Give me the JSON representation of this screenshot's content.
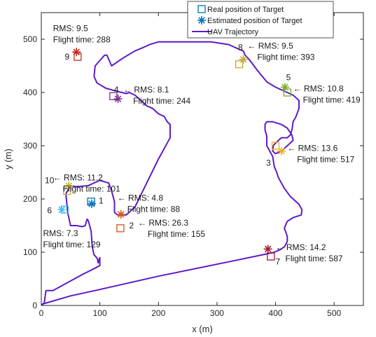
{
  "chart_data": {
    "type": "scatter",
    "title": "",
    "xlabel": "x (m)",
    "ylabel": "y (m)",
    "xlim": [
      0,
      550
    ],
    "ylim": [
      0,
      550
    ],
    "xticks": [
      0,
      100,
      200,
      300,
      400,
      500
    ],
    "yticks": [
      0,
      100,
      200,
      300,
      400,
      500
    ],
    "grid": false,
    "legend_position": "top-right",
    "legend": [
      {
        "label": "Real position of Target",
        "marker": "square",
        "color": "#0072BD"
      },
      {
        "label": "Estimated position of Target",
        "marker": "asterisk",
        "color": "#0072BD"
      },
      {
        "label": "UAV Trajectory",
        "marker": "line",
        "color": "#5E1BC9"
      }
    ],
    "colors": {
      "trajectory": "#5E1BC9",
      "target_1": "#0072BD",
      "target_2": "#D95319",
      "target_3": "#EDB120",
      "target_4": "#7E2F8E",
      "target_5": "#77AC30",
      "target_6": "#4DBEEE",
      "target_7": "#A2142F",
      "target_8": "#C8A830",
      "target_9": "#C8281A",
      "target_10": "#C8B830"
    },
    "targets": [
      {
        "id": "1",
        "real": [
          85,
          195
        ],
        "estimated": [
          86,
          191
        ],
        "color": "#0072BD",
        "rms": "RMS: 4.8",
        "flight_time": "Flight time: 88"
      },
      {
        "id": "2",
        "real": [
          135,
          145
        ],
        "estimated": [
          136,
          171
        ],
        "color": "#D95319",
        "rms": "RMS: 26.3",
        "flight_time": "Flight time: 155"
      },
      {
        "id": "3",
        "real": [
          400,
          300
        ],
        "estimated": [
          410,
          290
        ],
        "color": "#EDB120",
        "rms": "RMS: 13.6",
        "flight_time": "Flight time: 517"
      },
      {
        "id": "4",
        "real": [
          123,
          393
        ],
        "estimated": [
          131,
          388
        ],
        "color": "#7E2F8E",
        "rms": "RMS: 8.1",
        "flight_time": "Flight time: 244"
      },
      {
        "id": "5",
        "real": [
          420,
          400
        ],
        "estimated": [
          416,
          410
        ],
        "color": "#77AC30",
        "rms": "RMS: 10.8",
        "flight_time": "Flight time: 419"
      },
      {
        "id": "6",
        "real": [
          40,
          180
        ],
        "estimated": [
          35,
          180
        ],
        "color": "#4DBEEE",
        "rms": "RMS: 7.3",
        "flight_time": "Flight time: 129"
      },
      {
        "id": "7",
        "real": [
          392,
          92
        ],
        "estimated": [
          387,
          106
        ],
        "color": "#A2142F",
        "rms": "RMS: 14.2",
        "flight_time": "Flight time: 587"
      },
      {
        "id": "8",
        "real": [
          338,
          453
        ],
        "estimated": [
          345,
          462
        ],
        "color": "#C8A830",
        "rms": "RMS: 9.5",
        "flight_time": "Flight time: 393"
      },
      {
        "id": "9",
        "real": [
          62,
          467
        ],
        "estimated": [
          60,
          476
        ],
        "color": "#C8281A",
        "rms": "RMS: 9.5",
        "flight_time": "Flight time: 288"
      },
      {
        "id": "10",
        "real": [
          44,
          215
        ],
        "estimated": [
          47,
          225
        ],
        "color": "#C8B830",
        "rms": "RMS: 11.2",
        "flight_time": "Flight time: 101"
      }
    ],
    "trajectory": [
      [
        0,
        0
      ],
      [
        5,
        5
      ],
      [
        8,
        28
      ],
      [
        20,
        28
      ],
      [
        45,
        43
      ],
      [
        70,
        58
      ],
      [
        95,
        72
      ],
      [
        100,
        75
      ],
      [
        100,
        90
      ],
      [
        97,
        80
      ],
      [
        96,
        87
      ],
      [
        93,
        92
      ],
      [
        90,
        95
      ],
      [
        87,
        110
      ],
      [
        85,
        140
      ],
      [
        80,
        160
      ],
      [
        78,
        162
      ],
      [
        75,
        150
      ],
      [
        70,
        148
      ],
      [
        60,
        150
      ],
      [
        50,
        150
      ],
      [
        48,
        160
      ],
      [
        45,
        175
      ],
      [
        42,
        210
      ],
      [
        50,
        225
      ],
      [
        60,
        223
      ],
      [
        80,
        225
      ],
      [
        100,
        235
      ],
      [
        115,
        230
      ],
      [
        120,
        215
      ],
      [
        125,
        195
      ],
      [
        125,
        175
      ],
      [
        130,
        170
      ],
      [
        145,
        170
      ],
      [
        160,
        185
      ],
      [
        180,
        230
      ],
      [
        200,
        275
      ],
      [
        215,
        305
      ],
      [
        220,
        315
      ],
      [
        220,
        340
      ],
      [
        215,
        345
      ],
      [
        210,
        355
      ],
      [
        200,
        360
      ],
      [
        190,
        370
      ],
      [
        180,
        375
      ],
      [
        170,
        385
      ],
      [
        160,
        395
      ],
      [
        150,
        400
      ],
      [
        145,
        398
      ],
      [
        130,
        402
      ],
      [
        110,
        408
      ],
      [
        95,
        418
      ],
      [
        90,
        430
      ],
      [
        92,
        450
      ],
      [
        100,
        460
      ],
      [
        108,
        470
      ],
      [
        112,
        470
      ],
      [
        120,
        450
      ],
      [
        140,
        465
      ],
      [
        160,
        478
      ],
      [
        175,
        485
      ],
      [
        185,
        490
      ],
      [
        200,
        495
      ],
      [
        230,
        495
      ],
      [
        260,
        495
      ],
      [
        290,
        495
      ],
      [
        320,
        490
      ],
      [
        340,
        480
      ],
      [
        345,
        478
      ],
      [
        348,
        470
      ],
      [
        355,
        462
      ],
      [
        370,
        440
      ],
      [
        385,
        420
      ],
      [
        400,
        410
      ],
      [
        410,
        405
      ],
      [
        420,
        400
      ],
      [
        430,
        395
      ],
      [
        440,
        385
      ],
      [
        440,
        370
      ],
      [
        435,
        355
      ],
      [
        430,
        345
      ],
      [
        428,
        330
      ],
      [
        425,
        320
      ],
      [
        420,
        315
      ],
      [
        412,
        315
      ],
      [
        410,
        315
      ],
      [
        400,
        305
      ],
      [
        396,
        300
      ],
      [
        395,
        290
      ],
      [
        400,
        285
      ],
      [
        410,
        290
      ],
      [
        420,
        300
      ],
      [
        430,
        310
      ],
      [
        428,
        320
      ],
      [
        420,
        333
      ],
      [
        410,
        340
      ],
      [
        395,
        345
      ],
      [
        385,
        345
      ],
      [
        382,
        340
      ],
      [
        382,
        330
      ],
      [
        385,
        318
      ],
      [
        385,
        300
      ],
      [
        390,
        290
      ],
      [
        395,
        280
      ],
      [
        398,
        260
      ],
      [
        402,
        250
      ],
      [
        405,
        240
      ],
      [
        410,
        230
      ],
      [
        415,
        220
      ],
      [
        425,
        205
      ],
      [
        440,
        190
      ],
      [
        445,
        180
      ],
      [
        444,
        170
      ],
      [
        430,
        165
      ],
      [
        420,
        158
      ],
      [
        415,
        145
      ],
      [
        420,
        130
      ],
      [
        420,
        120
      ],
      [
        415,
        110
      ],
      [
        408,
        105
      ],
      [
        398,
        100
      ],
      [
        390,
        98
      ],
      [
        320,
        82
      ],
      [
        200,
        55
      ],
      [
        100,
        30
      ],
      [
        50,
        18
      ],
      [
        0,
        2
      ]
    ],
    "label_layout": [
      {
        "target": "1",
        "arrow_side": "left",
        "anchor": [
          130,
          197
        ],
        "id_anchor": [
          98,
          197
        ]
      },
      {
        "target": "2",
        "arrow_side": "left",
        "anchor": [
          165,
          150
        ],
        "id_anchor": [
          150,
          150
        ]
      },
      {
        "target": "3",
        "arrow_side": "left",
        "anchor": [
          420,
          290
        ],
        "id_anchor": [
          384,
          268
        ]
      },
      {
        "target": "4",
        "arrow_side": "left",
        "anchor": [
          140,
          400
        ],
        "id_anchor": [
          124,
          405
        ]
      },
      {
        "target": "5",
        "arrow_side": "left",
        "anchor": [
          430,
          402
        ],
        "id_anchor": [
          418,
          428
        ]
      },
      {
        "target": "6",
        "arrow_side": "none",
        "anchor": [
          3,
          130
        ],
        "id_anchor": [
          10,
          178
        ]
      },
      {
        "target": "7",
        "arrow_side": "left",
        "anchor": [
          400,
          104
        ],
        "id_anchor": [
          400,
          82
        ]
      },
      {
        "target": "8",
        "arrow_side": "left",
        "anchor": [
          352,
          482
        ],
        "id_anchor": [
          336,
          485
        ]
      },
      {
        "target": "9",
        "arrow_side": "none",
        "anchor": [
          20,
          515
        ],
        "id_anchor": [
          40,
          467
        ]
      },
      {
        "target": "10",
        "arrow_side": "left",
        "anchor": [
          20,
          235
        ],
        "id_anchor": [
          6,
          235
        ]
      }
    ]
  }
}
